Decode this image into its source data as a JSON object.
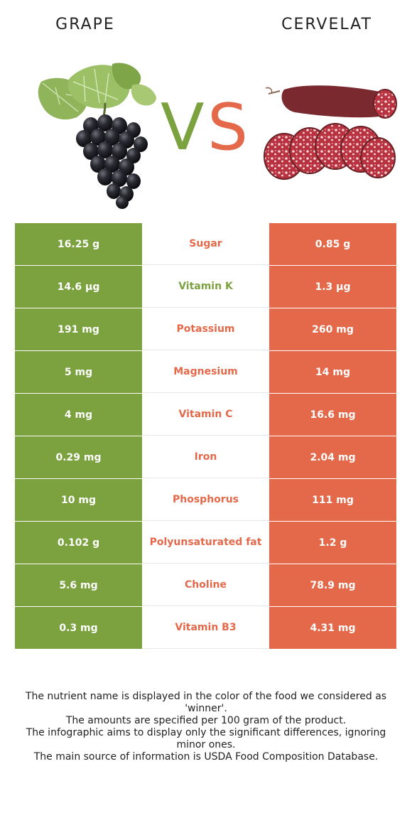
{
  "colors": {
    "grape": "#7ba23f",
    "cervelat": "#e4694a"
  },
  "left_food": {
    "name": "GRAPE",
    "icon": "grape-cluster-icon"
  },
  "right_food": {
    "name": "CERVELAT",
    "icon": "cervelat-sausage-icon"
  },
  "vs": {
    "v": "V",
    "s": "S"
  },
  "rows": [
    {
      "left": "16.25 g",
      "nutrient": "Sugar",
      "right": "0.85 g",
      "winner": "cervelat"
    },
    {
      "left": "14.6 µg",
      "nutrient": "Vitamin K",
      "right": "1.3 µg",
      "winner": "grape"
    },
    {
      "left": "191 mg",
      "nutrient": "Potassium",
      "right": "260 mg",
      "winner": "cervelat"
    },
    {
      "left": "5 mg",
      "nutrient": "Magnesium",
      "right": "14 mg",
      "winner": "cervelat"
    },
    {
      "left": "4 mg",
      "nutrient": "Vitamin C",
      "right": "16.6 mg",
      "winner": "cervelat"
    },
    {
      "left": "0.29 mg",
      "nutrient": "Iron",
      "right": "2.04 mg",
      "winner": "cervelat"
    },
    {
      "left": "10 mg",
      "nutrient": "Phosphorus",
      "right": "111 mg",
      "winner": "cervelat"
    },
    {
      "left": "0.102 g",
      "nutrient": "Polyunsaturated fat",
      "right": "1.2 g",
      "winner": "cervelat"
    },
    {
      "left": "5.6 mg",
      "nutrient": "Choline",
      "right": "78.9 mg",
      "winner": "cervelat"
    },
    {
      "left": "0.3 mg",
      "nutrient": "Vitamin B3",
      "right": "4.31 mg",
      "winner": "cervelat"
    }
  ],
  "footer": [
    "The nutrient name is displayed in the color of the food we considered as 'winner'.",
    "The amounts are specified per 100 gram of the product.",
    "The infographic aims to display only the significant differences, ignoring minor ones.",
    "The main source of information is USDA Food Composition Database."
  ]
}
